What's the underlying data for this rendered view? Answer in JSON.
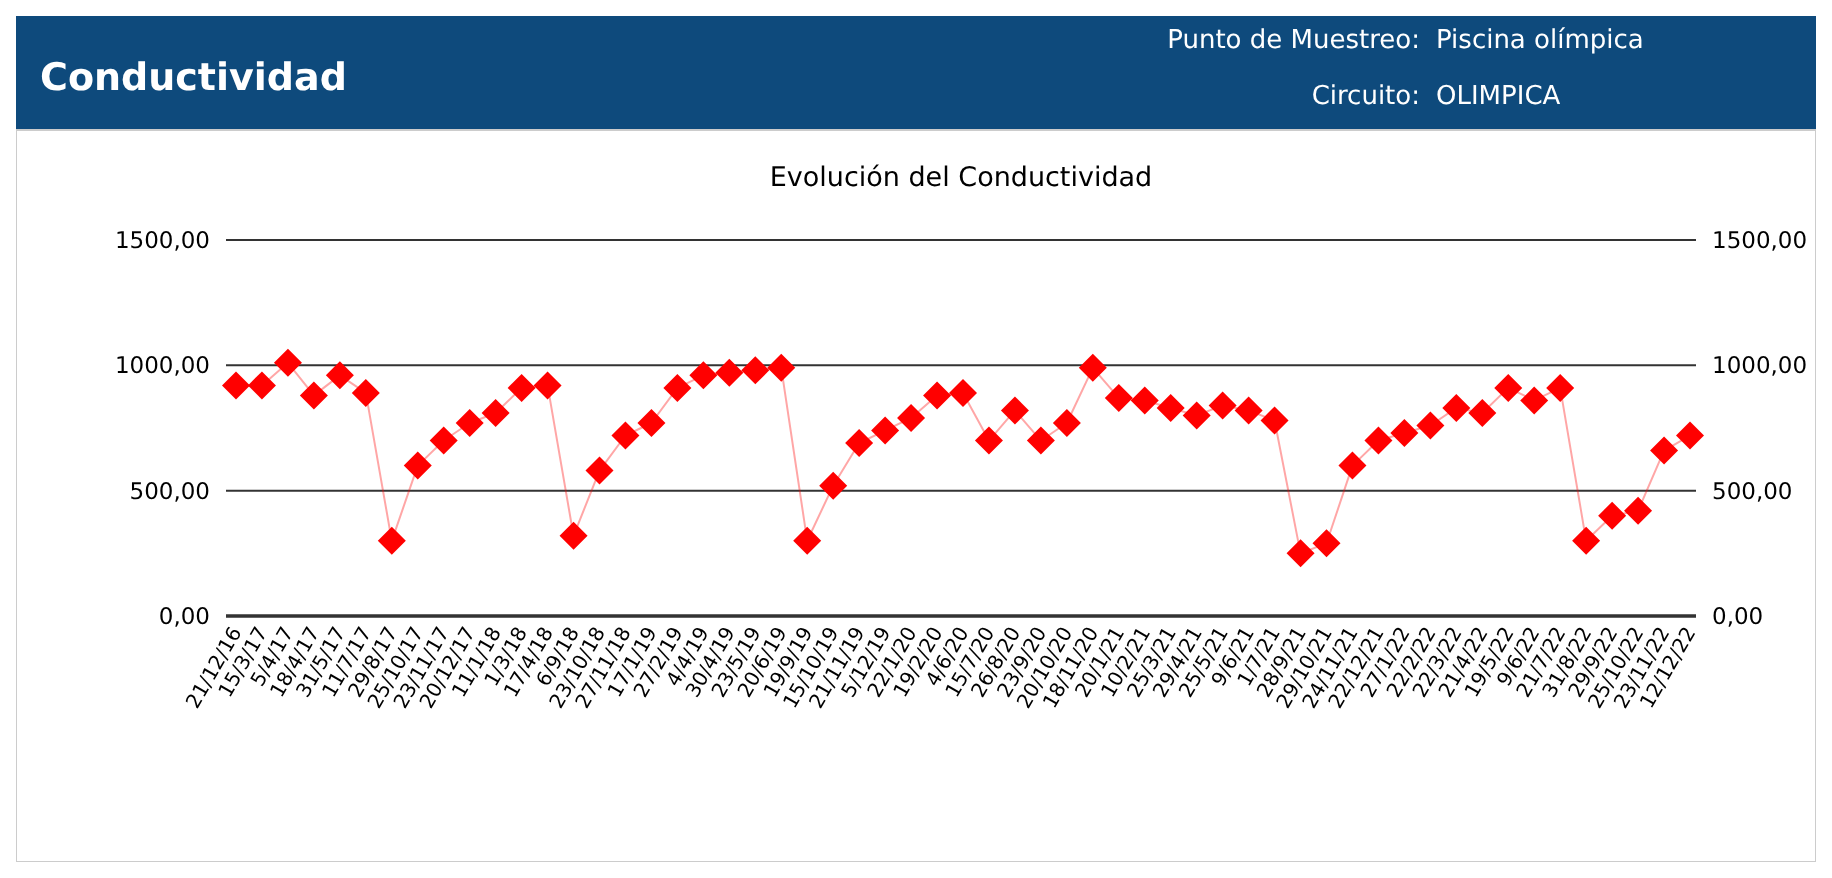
{
  "chart_data": {
    "type": "line",
    "title": "Conductividad",
    "subtitle": "Evolución del Conductividad",
    "annotations": [
      "Punto de Muestreo:  Piscina olímpica",
      "Circuito:  OLIMPICA"
    ],
    "categories": [
      "21/12/16",
      "15/3/17",
      "5/4/17",
      "18/4/17",
      "31/5/17",
      "11/7/17",
      "29/8/17",
      "25/10/17",
      "23/11/17",
      "20/12/17",
      "11/1/18",
      "1/3/18",
      "17/4/18",
      "6/9/18",
      "23/10/18",
      "27/11/18",
      "17/1/19",
      "27/2/19",
      "4/4/19",
      "30/4/19",
      "23/5/19",
      "20/6/19",
      "19/9/19",
      "15/10/19",
      "21/11/19",
      "5/12/19",
      "22/1/20",
      "19/2/20",
      "4/6/20",
      "15/7/20",
      "26/8/20",
      "23/9/20",
      "20/10/20",
      "18/11/20",
      "20/1/21",
      "10/2/21",
      "25/3/21",
      "29/4/21",
      "25/5/21",
      "9/6/21",
      "1/7/21",
      "28/9/21",
      "29/10/21",
      "24/11/21",
      "22/12/21",
      "27/1/22",
      "22/2/22",
      "22/3/22",
      "21/4/22",
      "19/5/22",
      "9/6/22",
      "21/7/22",
      "31/8/22",
      "29/9/22",
      "25/10/22",
      "23/11/22",
      "12/12/22"
    ],
    "series": [
      {
        "color": "#ff0000",
        "values": [
          920,
          920,
          1010,
          880,
          960,
          890,
          300,
          600,
          700,
          770,
          810,
          910,
          920,
          320,
          580,
          720,
          770,
          910,
          960,
          970,
          980,
          990,
          300,
          520,
          690,
          740,
          790,
          880,
          890,
          700,
          820,
          700,
          770,
          990,
          870,
          860,
          830,
          800,
          840,
          820,
          780,
          250,
          290,
          600,
          700,
          730,
          760,
          830,
          810,
          910,
          860,
          910,
          300,
          400,
          420,
          660,
          720
        ]
      }
    ],
    "ylim": [
      0,
      1500
    ],
    "yticks": [
      {
        "value": 0,
        "label": "0,00"
      },
      {
        "value": 500,
        "label": "500,00"
      },
      {
        "value": 1000,
        "label": "1000,00"
      },
      {
        "value": 1500,
        "label": "1500,00"
      }
    ],
    "y2lim": [
      0,
      1500
    ],
    "y2ticks": [
      {
        "value": 0,
        "label": "0,00"
      },
      {
        "value": 500,
        "label": "500,00"
      },
      {
        "value": 1000,
        "label": "1000,00"
      },
      {
        "value": 1500,
        "label": "1500,00"
      }
    ],
    "grid": "y",
    "marker": "diamond",
    "line_style": "solid"
  }
}
